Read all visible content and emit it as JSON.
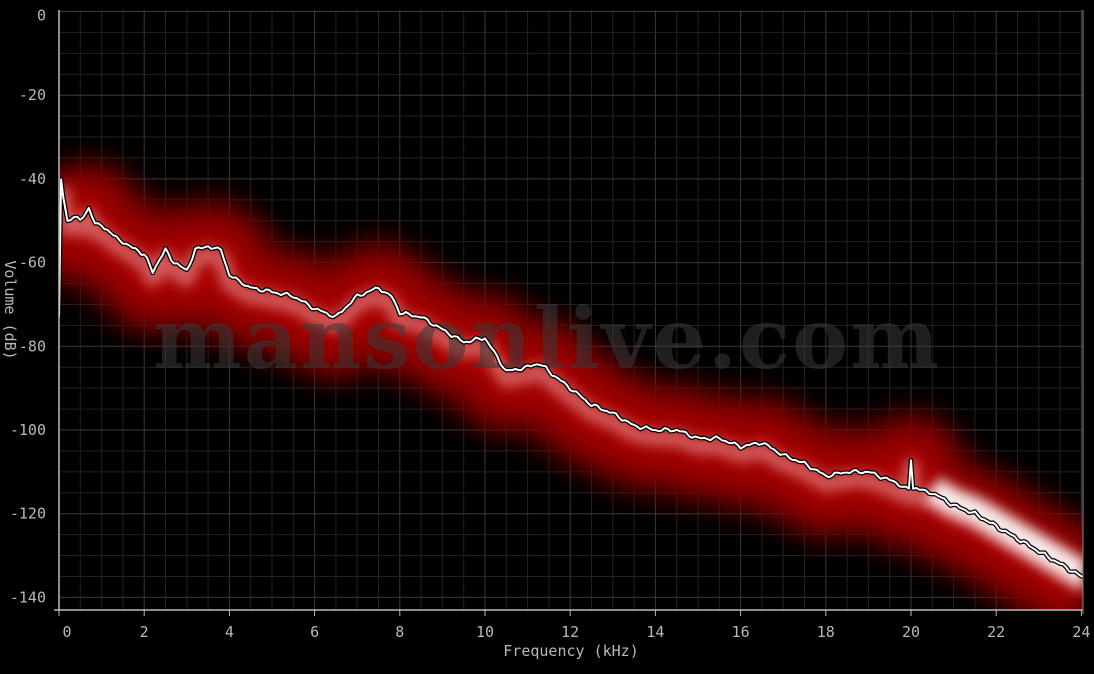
{
  "chart_data": {
    "type": "line",
    "xlabel": "Frequency (kHz)",
    "ylabel": "Volume (dB)",
    "xlim": [
      0,
      24.05
    ],
    "ylim": [
      -143,
      0
    ],
    "xticks": [
      0,
      2,
      4,
      6,
      8,
      10,
      12,
      14,
      16,
      18,
      20,
      22,
      24
    ],
    "yticks": [
      0,
      -20,
      -40,
      -60,
      -80,
      -100,
      -120,
      -140
    ],
    "grid": true,
    "background": "#000000",
    "band_color": "#a00000",
    "line_color": "#ffffff",
    "watermark": "mansonlive.com",
    "series": [
      {
        "x": [
          0,
          0.05,
          0.1,
          0.2,
          0.35,
          0.5,
          0.7,
          0.85,
          1,
          1.2,
          1.5,
          1.8,
          2,
          2.2,
          2.5,
          2.7,
          3,
          3.2,
          3.5,
          3.8,
          4,
          4.3,
          4.5,
          5,
          5.5,
          6,
          6.5,
          7,
          7.5,
          7.8,
          8,
          8.5,
          9,
          9.5,
          10,
          10.5,
          11,
          11.3,
          11.5,
          12,
          12.5,
          13,
          13.5,
          14,
          14.5,
          15,
          15.5,
          16,
          16.5,
          17,
          17.5,
          18,
          18.5,
          19,
          19.5,
          19.95,
          20,
          20.05,
          20.5,
          21,
          21.5,
          22,
          22.5,
          23,
          23.5,
          24,
          24.05
        ],
        "y": [
          -73,
          -40,
          -44,
          -50,
          -49,
          -50,
          -47,
          -51,
          -51,
          -53,
          -55,
          -57,
          -58,
          -62,
          -57,
          -60,
          -62,
          -57,
          -56,
          -57,
          -63,
          -65,
          -66,
          -67,
          -68,
          -71,
          -73,
          -68,
          -66,
          -68,
          -72,
          -73,
          -76,
          -79,
          -78,
          -86,
          -85,
          -84,
          -86,
          -90,
          -94,
          -96,
          -99,
          -100,
          -100,
          -102,
          -102,
          -104,
          -103,
          -106,
          -108,
          -111,
          -110,
          -110,
          -112,
          -114,
          -107,
          -114,
          -115,
          -118,
          -120,
          -123,
          -126,
          -129,
          -132,
          -135,
          -135
        ]
      }
    ]
  }
}
